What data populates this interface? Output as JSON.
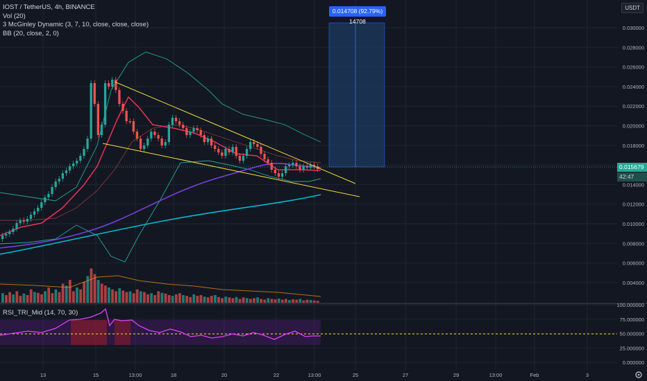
{
  "legend": {
    "symbol": "IOST / TetherUS, 4h, BINANCE",
    "vol": "Vol (20)",
    "mcginley": "3 McGinley Dynamic (3, 7, 10, close, close, close)",
    "bb": "BB (20, close, 2, 0)",
    "rsi": "RSI_TRI_Mid (14, 70, 30)"
  },
  "currency": "USDT",
  "position_label": "0.014708 (92.79%) 14708",
  "current_price": "0.015679",
  "countdown": "42:47",
  "price_axis": [
    "0.030000",
    "0.028000",
    "0.026000",
    "0.024000",
    "0.022000",
    "0.020000",
    "0.018000",
    "0.016000",
    "0.014000",
    "0.012000",
    "0.010000",
    "0.008000",
    "0.006000",
    "0.004000"
  ],
  "rsi_axis": [
    "100.000000",
    "75.000000",
    "50.000000",
    "25.000000",
    "0.000000"
  ],
  "time_axis": [
    "13",
    "15",
    "13:00",
    "18",
    "20",
    "22",
    "13:00",
    "25",
    "27",
    "29",
    "13:00",
    "Feb",
    "3"
  ],
  "colors": {
    "bg": "#131722",
    "up": "#26a69a",
    "down": "#ef5350",
    "bb": "#26a69a",
    "trend": "#f3e03b",
    "ma_purple": "#7b3fe4",
    "ma_cyan": "#00bcd4",
    "rsi": "#e040fb"
  },
  "icons": [
    "gear-icon"
  ]
}
